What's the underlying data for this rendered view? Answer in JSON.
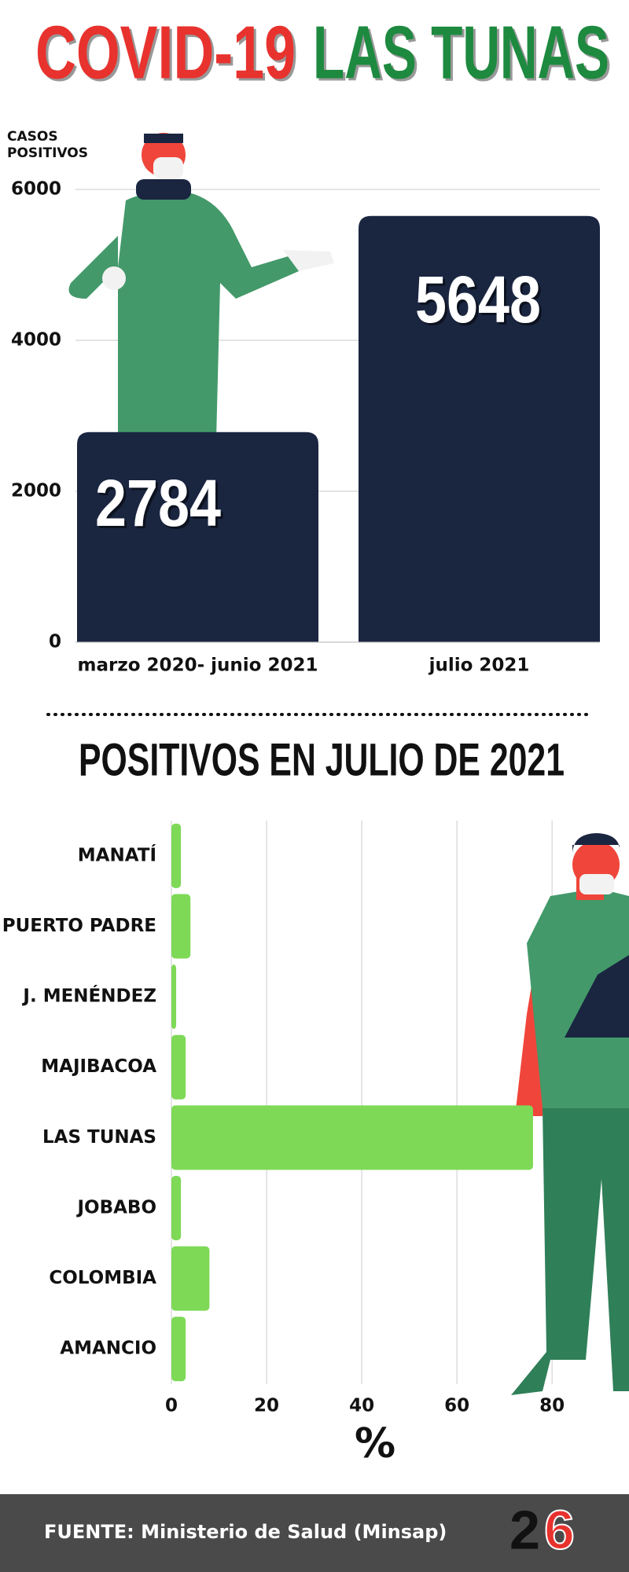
{
  "title": [
    {
      "text": "COVID-19",
      "color": "#e8322e"
    },
    {
      "text": "LAS TUNAS",
      "color": "#1d8a3f"
    }
  ],
  "chart_data": [
    {
      "type": "bar",
      "y_label": "CASOS POSITIVOS",
      "categories": [
        "marzo 2020- junio 2021",
        "julio 2021"
      ],
      "values": [
        2784,
        5648
      ],
      "color": "#1a2540",
      "ylim": [
        0,
        6000
      ],
      "yticks": [
        0,
        2000,
        4000,
        6000
      ],
      "grid": true
    },
    {
      "type": "barh",
      "title": "POSITIVOS EN JULIO DE 2021",
      "x_label": "%",
      "categories": [
        "MANATÍ",
        "PUERTO PADRE",
        "J. MENÉNDEZ",
        "MAJIBACOA",
        "LAS TUNAS",
        "JOBABO",
        "COLOMBIA",
        "AMANCIO"
      ],
      "values": [
        2,
        4,
        1,
        3,
        76,
        2,
        8,
        3
      ],
      "color": "#7ed957",
      "xlim": [
        0,
        96
      ],
      "xticks": [
        0,
        20,
        40,
        60,
        80
      ],
      "grid": true
    }
  ],
  "footer": {
    "source": "FUENTE: Ministerio de Salud (Minsap)",
    "logo": [
      "2",
      "6"
    ]
  }
}
